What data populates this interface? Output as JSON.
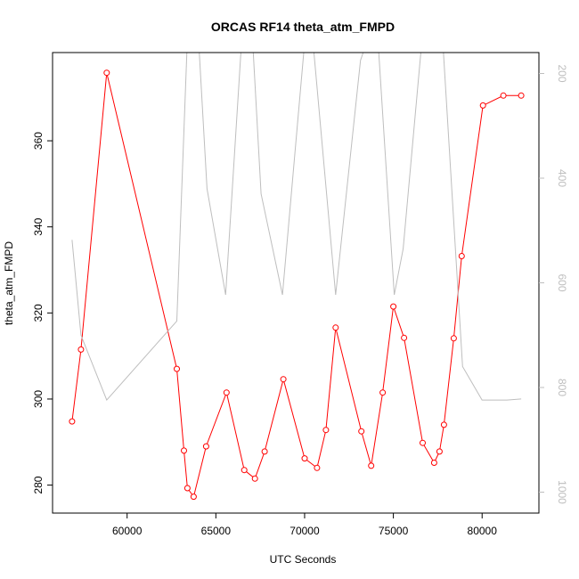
{
  "chart_data": {
    "type": "line",
    "title": "ORCAS RF14 theta_atm_FMPD",
    "xlabel": "UTC Seconds",
    "ylabel": "theta_atm_FMPD",
    "xlim": [
      55800,
      83200
    ],
    "ylim": [
      273.5,
      380.5
    ],
    "x_ticks": [
      60000,
      65000,
      70000,
      75000,
      80000
    ],
    "x_tick_labels": [
      "60000",
      "65000",
      "70000",
      "75000",
      "80000"
    ],
    "y_ticks": [
      280,
      300,
      320,
      340,
      360
    ],
    "y_tick_labels": [
      "280",
      "300",
      "320",
      "340",
      "360"
    ],
    "y2lim": [
      1040,
      160
    ],
    "y2_ticks": [
      200,
      400,
      600,
      800,
      1000
    ],
    "y2_tick_labels": [
      "200",
      "400",
      "600",
      "800",
      "1000"
    ],
    "colors": {
      "primary": "#ff0000",
      "secondary": "#bebebe",
      "axis": "#000000"
    },
    "grid": false,
    "series": [
      {
        "axis": "left",
        "style": "line+points",
        "x": [
          56900,
          57400,
          58850,
          62800,
          63200,
          63400,
          63750,
          64450,
          65600,
          66600,
          67200,
          67750,
          68800,
          70000,
          70700,
          71200,
          71750,
          73200,
          73750,
          74400,
          75000,
          75600,
          76650,
          77300,
          77600,
          77850,
          78400,
          78850,
          80050,
          81200,
          82200
        ],
        "y": [
          294.8,
          311.5,
          375.8,
          307.0,
          288.0,
          279.3,
          277.3,
          289.0,
          301.5,
          283.5,
          281.5,
          287.8,
          304.6,
          286.2,
          284.0,
          292.8,
          316.6,
          292.5,
          284.5,
          301.5,
          321.5,
          314.2,
          289.8,
          285.2,
          287.8,
          294.0,
          314.1,
          333.2,
          368.2,
          370.5,
          370.5
        ]
      },
      {
        "axis": "right",
        "style": "line",
        "x": [
          56900,
          57400,
          58850,
          62800,
          63500,
          63900,
          64500,
          65550,
          66550,
          67000,
          67550,
          68750,
          69950,
          70500,
          71750,
          73150,
          73600,
          74100,
          75050,
          75550,
          76600,
          77200,
          77750,
          78900,
          80000,
          81400,
          82200
        ],
        "y": [
          518,
          700,
          824,
          673,
          40,
          60,
          420,
          623,
          85,
          95,
          430,
          623,
          160,
          150,
          623,
          175,
          130,
          120,
          623,
          535,
          140,
          130,
          120,
          760,
          824,
          824,
          822
        ]
      }
    ]
  }
}
